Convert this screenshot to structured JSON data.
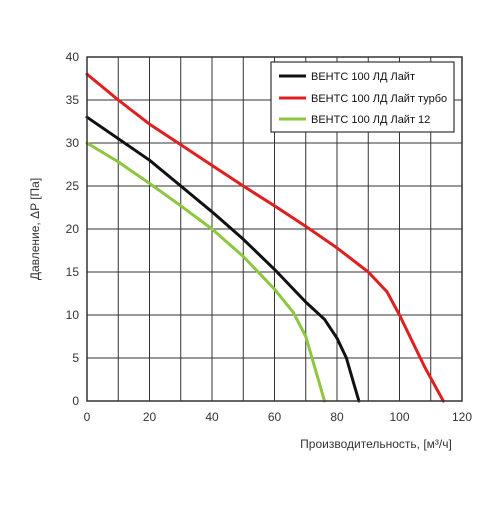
{
  "chart_data": {
    "type": "line",
    "title": "",
    "xlabel": "Производительность, [м³/ч]",
    "ylabel": "Давление, ΔP [Па]",
    "xlim": [
      0,
      120
    ],
    "ylim": [
      0,
      40
    ],
    "x_ticks": [
      0,
      20,
      40,
      60,
      80,
      100,
      120
    ],
    "y_ticks": [
      0,
      5,
      10,
      15,
      20,
      25,
      30,
      35,
      40
    ],
    "grid": true,
    "legend_position": "top-right",
    "series": [
      {
        "name": "ВЕНТС 100 ЛД Лайт",
        "color": "#111111",
        "points": [
          [
            0,
            33
          ],
          [
            10,
            30.5
          ],
          [
            20,
            28
          ],
          [
            30,
            25
          ],
          [
            40,
            22
          ],
          [
            50,
            18.8
          ],
          [
            60,
            15.3
          ],
          [
            70,
            11.5
          ],
          [
            76,
            9.5
          ],
          [
            80,
            7.3
          ],
          [
            83,
            5
          ],
          [
            85,
            2.5
          ],
          [
            87,
            0
          ]
        ]
      },
      {
        "name": "ВЕНТС 100 ЛД Лайт турбо",
        "color": "#e02020",
        "points": [
          [
            0,
            38
          ],
          [
            10,
            35
          ],
          [
            20,
            32.2
          ],
          [
            30,
            29.8
          ],
          [
            40,
            27.4
          ],
          [
            50,
            25
          ],
          [
            60,
            22.7
          ],
          [
            70,
            20.3
          ],
          [
            80,
            17.8
          ],
          [
            90,
            15
          ],
          [
            96,
            12.7
          ],
          [
            100,
            10
          ],
          [
            104,
            7
          ],
          [
            108,
            4
          ],
          [
            111,
            2
          ],
          [
            114,
            0
          ]
        ]
      },
      {
        "name": "ВЕНТС 100 ЛД Лайт 12",
        "color": "#8dc63f",
        "points": [
          [
            0,
            30
          ],
          [
            10,
            27.8
          ],
          [
            20,
            25.3
          ],
          [
            30,
            22.7
          ],
          [
            40,
            20
          ],
          [
            50,
            16.8
          ],
          [
            60,
            13
          ],
          [
            66,
            10.3
          ],
          [
            70,
            7.5
          ],
          [
            72,
            5
          ],
          [
            74,
            2.5
          ],
          [
            76,
            0
          ]
        ]
      }
    ]
  }
}
